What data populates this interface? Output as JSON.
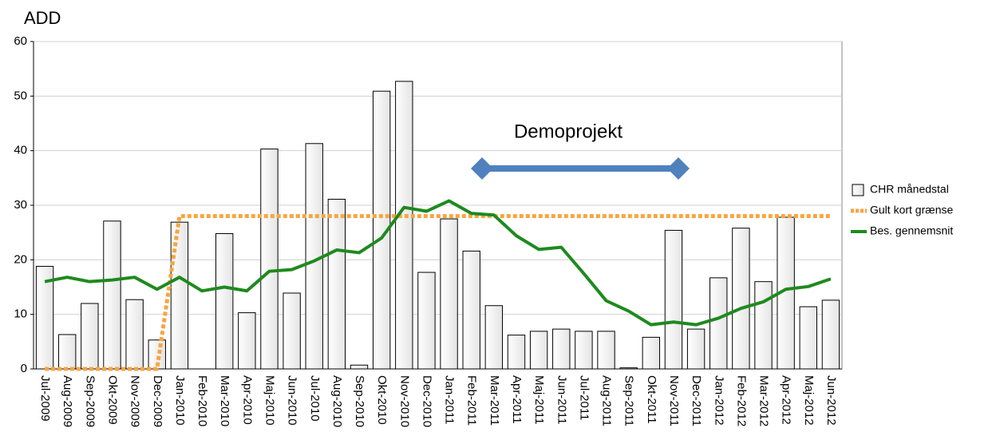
{
  "chart_data": {
    "type": "bar",
    "y_title": "ADD",
    "annotation": "Demoprojekt",
    "categories": [
      "Jul-2009",
      "Aug-2009",
      "Sep-2009",
      "Okt-2009",
      "Nov-2009",
      "Dec-2009",
      "Jan-2010",
      "Feb-2010",
      "Mar-2010",
      "Apr-2010",
      "Maj-2010",
      "Jun-2010",
      "Jul-2010",
      "Aug-2010",
      "Sep-2010",
      "Okt-2010",
      "Nov-2010",
      "Dec-2010",
      "Jan-2011",
      "Feb-2011",
      "Mar-2011",
      "Apr-2011",
      "Maj-2011",
      "Jun-2011",
      "Jul-2011",
      "Aug-2011",
      "Sep-2011",
      "Okt-2011",
      "Nov-2011",
      "Dec-2011",
      "Jan-2012",
      "Feb-2012",
      "Mar-2012",
      "Apr-2012",
      "Maj-2012",
      "Jun-2012"
    ],
    "series": [
      {
        "name": "CHR månedstal",
        "type": "bar",
        "color": "#e4e4e4",
        "values": [
          18.8,
          6.3,
          12,
          27.1,
          12.7,
          5.3,
          26.9,
          0,
          24.8,
          10.3,
          40.3,
          13.9,
          41.3,
          31.1,
          0.7,
          50.9,
          52.7,
          17.7,
          27.5,
          21.6,
          11.6,
          6.2,
          6.9,
          7.3,
          6.9,
          6.9,
          0.2,
          5.8,
          25.4,
          7.3,
          16.7,
          25.8,
          16,
          27.8,
          11.4,
          12.6
        ]
      },
      {
        "name": "Gult kort grænse",
        "type": "dotted",
        "color": "#f7a541",
        "values": [
          0,
          0,
          0,
          0,
          0,
          0,
          28,
          28,
          28,
          28,
          28,
          28,
          28,
          28,
          28,
          28,
          28,
          28,
          28,
          28,
          28,
          28,
          28,
          28,
          28,
          28,
          28,
          28,
          28,
          28,
          28,
          28,
          28,
          28,
          28,
          28
        ]
      },
      {
        "name": "Bes. gennemsnit",
        "type": "line",
        "color": "#1e8a1e",
        "values": [
          16,
          16.8,
          16,
          16.3,
          16.8,
          14.6,
          16.8,
          14.3,
          15,
          14.3,
          17.9,
          18.2,
          19.8,
          21.8,
          21.3,
          24,
          29.6,
          28.9,
          30.8,
          28.5,
          28.2,
          24.4,
          21.9,
          22.3,
          17.5,
          12.5,
          10.6,
          8.1,
          8.6,
          8.1,
          9.3,
          11.1,
          12.3,
          14.6,
          15.1,
          16.5
        ]
      }
    ],
    "ylim": [
      0,
      60
    ],
    "yticks": [
      0,
      10,
      20,
      30,
      40,
      50,
      60
    ],
    "grid": true,
    "legend": "right"
  }
}
